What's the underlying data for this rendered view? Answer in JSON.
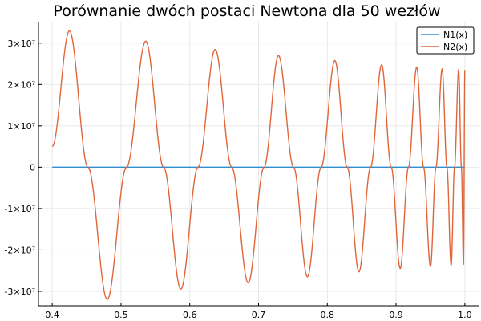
{
  "chart_data": {
    "type": "line",
    "title": "Porównanie dwóch postaci Newtona dla 50 wezłów",
    "xlabel": "",
    "ylabel": "",
    "xlim": [
      0.38,
      1.02
    ],
    "ylim": [
      -33500000,
      35000000
    ],
    "grid": true,
    "legend_position": "top-right",
    "x_ticks": [
      {
        "value": 0.4,
        "label": "0.4"
      },
      {
        "value": 0.5,
        "label": "0.5"
      },
      {
        "value": 0.6,
        "label": "0.6"
      },
      {
        "value": 0.7,
        "label": "0.7"
      },
      {
        "value": 0.8,
        "label": "0.8"
      },
      {
        "value": 0.9,
        "label": "0.9"
      },
      {
        "value": 1.0,
        "label": "1.0"
      }
    ],
    "y_ticks": [
      {
        "value": 30000000,
        "label": "3×10⁷"
      },
      {
        "value": 20000000,
        "label": "2×10⁷"
      },
      {
        "value": 10000000,
        "label": "1×10⁷"
      },
      {
        "value": 0,
        "label": "0"
      },
      {
        "value": -10000000,
        "label": "-1×10⁷"
      },
      {
        "value": -20000000,
        "label": "-2×10⁷"
      },
      {
        "value": -30000000,
        "label": "-3×10⁷"
      }
    ],
    "series": [
      {
        "name": "N1(x)",
        "color": "#2f8fd0",
        "x": [
          0.4,
          1.0
        ],
        "y": [
          0,
          0
        ]
      },
      {
        "name": "N2(x)",
        "color": "#e0663a",
        "x": [
          0.4,
          0.425,
          0.452,
          0.48,
          0.508,
          0.536,
          0.562,
          0.587,
          0.612,
          0.637,
          0.661,
          0.685,
          0.708,
          0.729,
          0.751,
          0.771,
          0.791,
          0.811,
          0.829,
          0.846,
          0.863,
          0.879,
          0.893,
          0.906,
          0.918,
          0.93,
          0.94,
          0.95,
          0.958,
          0.967,
          0.974,
          0.98,
          0.985,
          0.991,
          0.995,
          0.998,
          1.0
        ],
        "y": [
          5000000,
          33000000,
          0,
          -32000000,
          0,
          30500000,
          0,
          -29500000,
          0,
          28500000,
          0,
          -28000000,
          0,
          27000000,
          0,
          -26500000,
          0,
          25800000,
          0,
          -25300000,
          0,
          24800000,
          0,
          -24500000,
          0,
          24200000,
          0,
          -24000000,
          0,
          23800000,
          0,
          -23700000,
          0,
          23600000,
          0,
          -23500000,
          23500000
        ]
      }
    ]
  }
}
